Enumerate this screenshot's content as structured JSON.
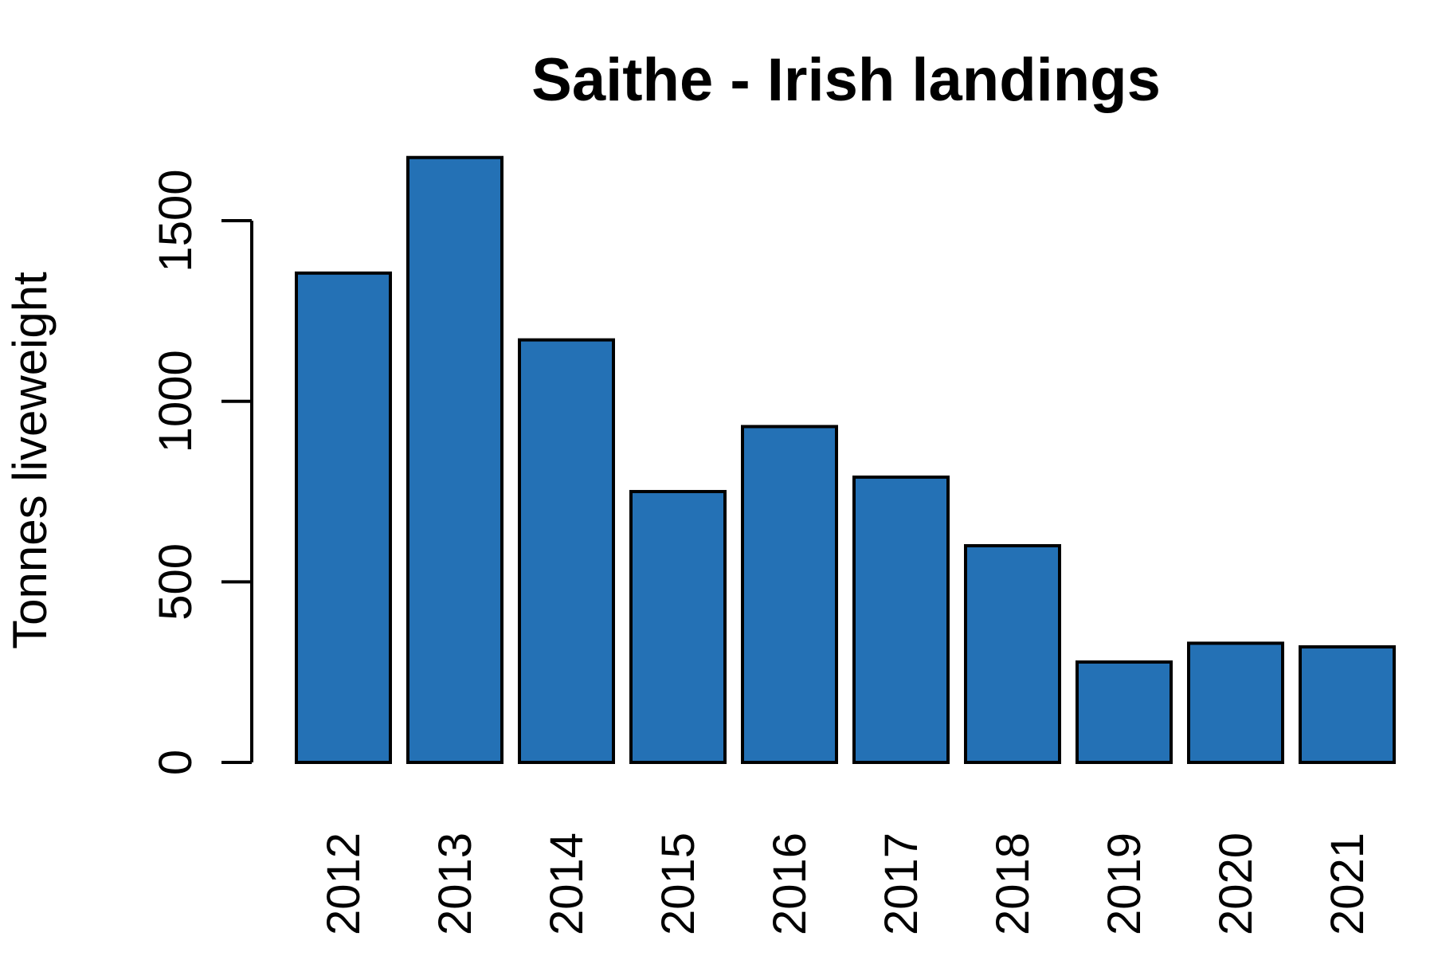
{
  "chart_data": {
    "type": "bar",
    "title": "Saithe - Irish landings",
    "xlabel": "",
    "ylabel": "Tonnes liveweight",
    "categories": [
      "2012",
      "2013",
      "2014",
      "2015",
      "2016",
      "2017",
      "2018",
      "2019",
      "2020",
      "2021"
    ],
    "values": [
      1355,
      1675,
      1170,
      750,
      930,
      790,
      600,
      278,
      330,
      320
    ],
    "yticks": [
      0,
      500,
      1000,
      1500
    ],
    "ytick_labels": [
      "0",
      "500",
      "1000",
      "1500"
    ],
    "ylim": [
      0,
      1700
    ],
    "bar_color": "#2471b5",
    "grid": false,
    "legend": "none"
  }
}
